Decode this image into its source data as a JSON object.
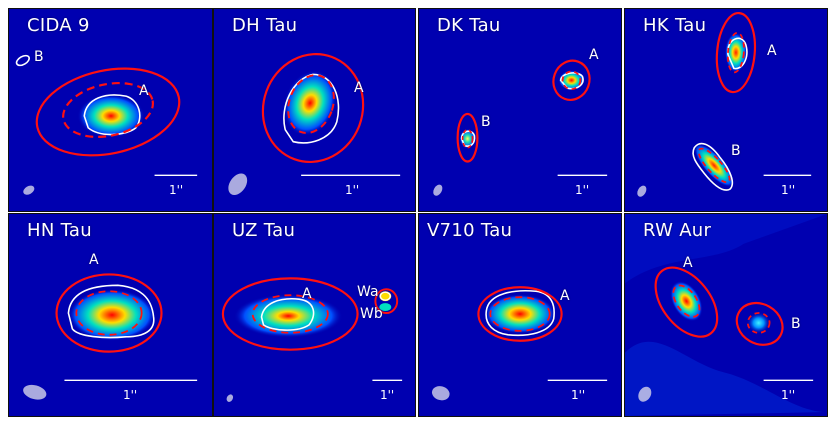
{
  "figure": {
    "panels": [
      {
        "id": "cida9",
        "title": "CIDA 9",
        "sources": [
          "A",
          "B"
        ],
        "scale_label": "1''"
      },
      {
        "id": "dhtau",
        "title": "DH Tau",
        "sources": [
          "A"
        ],
        "scale_label": "1''"
      },
      {
        "id": "dktau",
        "title": "DK Tau",
        "sources": [
          "A",
          "B"
        ],
        "scale_label": "1''"
      },
      {
        "id": "hktau",
        "title": "HK Tau",
        "sources": [
          "A",
          "B"
        ],
        "scale_label": "1''"
      },
      {
        "id": "hntau",
        "title": "HN Tau",
        "sources": [
          "A"
        ],
        "scale_label": "1''"
      },
      {
        "id": "uztau",
        "title": "UZ Tau",
        "sources": [
          "A",
          "Wa",
          "Wb"
        ],
        "scale_label": "1''"
      },
      {
        "id": "v710tau",
        "title": "V710 Tau",
        "sources": [
          "A"
        ],
        "scale_label": "1''"
      },
      {
        "id": "rwaur",
        "title": "RW Aur",
        "sources": [
          "A",
          "B"
        ],
        "scale_label": "1''"
      }
    ],
    "colors": {
      "background": "#0000b0",
      "fit_ellipse": "#ff1010",
      "contour": "#ffffff",
      "beam": "#c8c8e8"
    },
    "colormap": "jet"
  }
}
